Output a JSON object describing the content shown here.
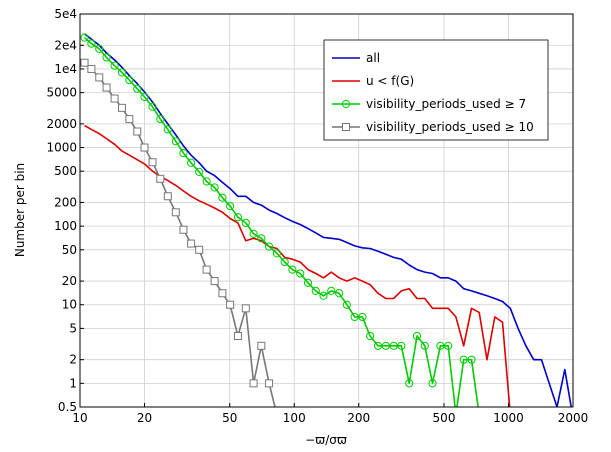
{
  "chart_data": {
    "type": "line",
    "xscale": "log",
    "yscale": "log",
    "xlim": [
      10,
      2000
    ],
    "ylim": [
      0.5,
      50000
    ],
    "xlabel": "−ϖ/σϖ",
    "ylabel": "Number per bin",
    "grid": true,
    "legend_position": "top-right",
    "xticks": [
      {
        "v": 10,
        "label": "10"
      },
      {
        "v": 20,
        "label": "20"
      },
      {
        "v": 50,
        "label": "50"
      },
      {
        "v": 100,
        "label": "100"
      },
      {
        "v": 200,
        "label": "200"
      },
      {
        "v": 500,
        "label": "500"
      },
      {
        "v": 1000,
        "label": "1000"
      },
      {
        "v": 2000,
        "label": "2000"
      }
    ],
    "yticks": [
      {
        "v": 0.5,
        "label": "0.5"
      },
      {
        "v": 1,
        "label": "1"
      },
      {
        "v": 2,
        "label": "2"
      },
      {
        "v": 5,
        "label": "5"
      },
      {
        "v": 10,
        "label": "10"
      },
      {
        "v": 20,
        "label": "20"
      },
      {
        "v": 50,
        "label": "50"
      },
      {
        "v": 100,
        "label": "100"
      },
      {
        "v": 200,
        "label": "200"
      },
      {
        "v": 500,
        "label": "500"
      },
      {
        "v": 1000,
        "label": "1000"
      },
      {
        "v": 2000,
        "label": "2000"
      },
      {
        "v": 5000,
        "label": "5000"
      },
      {
        "v": 10000,
        "label": "1e4"
      },
      {
        "v": 20000,
        "label": "2e4"
      },
      {
        "v": 50000,
        "label": "5e4"
      }
    ],
    "series": [
      {
        "name": "all",
        "color": "#0000cc",
        "marker": "none",
        "points": [
          [
            10.5,
            28000
          ],
          [
            11.3,
            24000
          ],
          [
            12.3,
            20000
          ],
          [
            13.3,
            16000
          ],
          [
            14.5,
            13000
          ],
          [
            15.7,
            10500
          ],
          [
            17,
            8200
          ],
          [
            18.5,
            6500
          ],
          [
            20,
            5100
          ],
          [
            21.8,
            3800
          ],
          [
            23.7,
            2700
          ],
          [
            25.7,
            2000
          ],
          [
            28,
            1450
          ],
          [
            30.4,
            1050
          ],
          [
            33,
            800
          ],
          [
            36,
            640
          ],
          [
            39,
            500
          ],
          [
            42.5,
            440
          ],
          [
            46.2,
            360
          ],
          [
            50.2,
            300
          ],
          [
            54.6,
            240
          ],
          [
            59.4,
            240
          ],
          [
            64.6,
            200
          ],
          [
            70.2,
            185
          ],
          [
            76.3,
            160
          ],
          [
            83,
            145
          ],
          [
            90.2,
            128
          ],
          [
            98,
            115
          ],
          [
            106.6,
            105
          ],
          [
            115.9,
            93
          ],
          [
            126,
            82
          ],
          [
            137,
            72
          ],
          [
            148.9,
            70
          ],
          [
            162,
            68
          ],
          [
            176,
            62
          ],
          [
            191.4,
            56
          ],
          [
            208,
            53
          ],
          [
            226,
            52
          ],
          [
            246,
            48
          ],
          [
            267.6,
            44
          ],
          [
            291,
            40
          ],
          [
            316,
            38
          ],
          [
            344,
            32
          ],
          [
            374,
            28
          ],
          [
            406.6,
            26
          ],
          [
            442,
            25
          ],
          [
            481,
            22
          ],
          [
            523,
            22
          ],
          [
            568,
            20
          ],
          [
            618,
            16
          ],
          [
            672,
            15
          ],
          [
            730,
            14
          ],
          [
            794,
            13
          ],
          [
            863,
            12
          ],
          [
            938,
            11
          ],
          [
            1020,
            9
          ],
          [
            1109,
            5
          ],
          [
            1206,
            3
          ],
          [
            1311,
            2
          ],
          [
            1425,
            2
          ],
          [
            1549,
            1
          ],
          [
            1684,
            0.5
          ],
          [
            1831,
            1.5
          ],
          [
            1990,
            0.4
          ]
        ]
      },
      {
        "name": "u < f(G)",
        "color": "#dd0000",
        "marker": "none",
        "points": [
          [
            10.5,
            1900
          ],
          [
            11.3,
            1700
          ],
          [
            12.3,
            1500
          ],
          [
            13.3,
            1300
          ],
          [
            14.5,
            1100
          ],
          [
            15.7,
            900
          ],
          [
            17,
            800
          ],
          [
            18.5,
            700
          ],
          [
            20,
            620
          ],
          [
            21.8,
            500
          ],
          [
            23.7,
            430
          ],
          [
            25.7,
            380
          ],
          [
            28,
            330
          ],
          [
            30.4,
            280
          ],
          [
            33,
            240
          ],
          [
            36,
            210
          ],
          [
            39,
            190
          ],
          [
            42.5,
            170
          ],
          [
            46.2,
            150
          ],
          [
            50.2,
            125
          ],
          [
            54.6,
            110
          ],
          [
            59.4,
            65
          ],
          [
            64.6,
            70
          ],
          [
            70.2,
            65
          ],
          [
            76.3,
            55
          ],
          [
            83,
            52
          ],
          [
            90.2,
            40
          ],
          [
            98,
            38
          ],
          [
            106.6,
            35
          ],
          [
            115.9,
            28
          ],
          [
            126,
            25
          ],
          [
            137,
            22
          ],
          [
            148.9,
            26
          ],
          [
            162,
            22
          ],
          [
            176,
            20
          ],
          [
            191.4,
            22
          ],
          [
            208,
            20
          ],
          [
            226,
            18
          ],
          [
            246,
            14
          ],
          [
            267.6,
            12
          ],
          [
            291,
            12
          ],
          [
            316,
            15
          ],
          [
            344,
            16
          ],
          [
            374,
            12
          ],
          [
            406.6,
            12
          ],
          [
            442,
            9
          ],
          [
            481,
            9
          ],
          [
            523,
            9
          ],
          [
            568,
            7
          ],
          [
            618,
            3
          ],
          [
            672,
            9
          ],
          [
            730,
            8
          ],
          [
            794,
            2
          ],
          [
            863,
            7
          ],
          [
            938,
            6
          ],
          [
            1020,
            0.4
          ]
        ]
      },
      {
        "name": "visibility_periods_used ≥ 7",
        "color": "#00cc00",
        "marker": "circle",
        "points": [
          [
            10.5,
            25000
          ],
          [
            11.3,
            21000
          ],
          [
            12.3,
            18000
          ],
          [
            13.3,
            14000
          ],
          [
            14.5,
            11000
          ],
          [
            15.7,
            9000
          ],
          [
            17,
            7200
          ],
          [
            18.5,
            5600
          ],
          [
            20,
            4400
          ],
          [
            21.8,
            3300
          ],
          [
            23.7,
            2300
          ],
          [
            25.7,
            1700
          ],
          [
            28,
            1200
          ],
          [
            30.4,
            850
          ],
          [
            33,
            640
          ],
          [
            36,
            490
          ],
          [
            39,
            370
          ],
          [
            42.5,
            310
          ],
          [
            46.2,
            230
          ],
          [
            50.2,
            180
          ],
          [
            54.6,
            130
          ],
          [
            59.4,
            110
          ],
          [
            64.6,
            80
          ],
          [
            70.2,
            70
          ],
          [
            76.3,
            55
          ],
          [
            83,
            45
          ],
          [
            90.2,
            35
          ],
          [
            98,
            28
          ],
          [
            106.6,
            25
          ],
          [
            115.9,
            19
          ],
          [
            126,
            15
          ],
          [
            137,
            13
          ],
          [
            148.9,
            15
          ],
          [
            162,
            14
          ],
          [
            176,
            10
          ],
          [
            191.4,
            7
          ],
          [
            208,
            7
          ],
          [
            226,
            4
          ],
          [
            246,
            3
          ],
          [
            267.6,
            3
          ],
          [
            291,
            3
          ],
          [
            316,
            3
          ],
          [
            344,
            1
          ],
          [
            374,
            4
          ],
          [
            406.6,
            3
          ],
          [
            442,
            1
          ],
          [
            481,
            3
          ],
          [
            523,
            3
          ],
          [
            568,
            0.4
          ],
          [
            618,
            2
          ],
          [
            672,
            2
          ],
          [
            730,
            0.4
          ]
        ]
      },
      {
        "name": "visibility_periods_used ≥ 10",
        "color": "#777777",
        "marker": "square",
        "points": [
          [
            10.5,
            12000
          ],
          [
            11.3,
            10000
          ],
          [
            12.3,
            7800
          ],
          [
            13.3,
            5800
          ],
          [
            14.5,
            4200
          ],
          [
            15.7,
            3200
          ],
          [
            17,
            2300
          ],
          [
            18.5,
            1600
          ],
          [
            20,
            1000
          ],
          [
            21.8,
            650
          ],
          [
            23.7,
            400
          ],
          [
            25.7,
            240
          ],
          [
            28,
            150
          ],
          [
            30.4,
            90
          ],
          [
            33,
            60
          ],
          [
            36,
            50
          ],
          [
            39,
            28
          ],
          [
            42.5,
            20
          ],
          [
            46.2,
            14
          ],
          [
            50.2,
            10
          ],
          [
            54.6,
            4
          ],
          [
            59.4,
            9
          ],
          [
            64.6,
            1
          ],
          [
            70.2,
            3
          ],
          [
            76.3,
            1
          ],
          [
            83,
            0.4
          ]
        ]
      }
    ]
  }
}
